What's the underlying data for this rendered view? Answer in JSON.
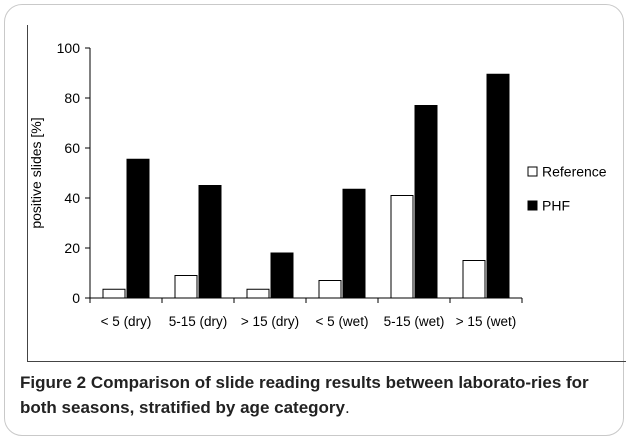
{
  "figure": {
    "caption_label": "Figure 2",
    "caption_text": " Comparison of slide reading results between laborato-ries for both seasons, stratified by age category",
    "caption_end": "."
  },
  "chart_data": {
    "type": "bar",
    "title": "",
    "xlabel": "",
    "ylabel": "positive slides [%]",
    "ylim": [
      0,
      100
    ],
    "yticks": [
      0,
      20,
      40,
      60,
      80,
      100
    ],
    "categories": [
      "< 5   (dry)",
      "5-15 (dry)",
      "> 15 (dry)",
      "< 5  (wet)",
      "5-15 (wet)",
      "> 15 (wet)"
    ],
    "series": [
      {
        "name": "Reference",
        "values": [
          3.5,
          9,
          3.5,
          7,
          41,
          15
        ],
        "fill": "#ffffff",
        "stroke": "#000000"
      },
      {
        "name": "PHF",
        "values": [
          55.5,
          45,
          18,
          43.5,
          77,
          89.5
        ],
        "fill": "#000000",
        "stroke": "#000000"
      }
    ],
    "legend_position": "right",
    "grid": false
  }
}
